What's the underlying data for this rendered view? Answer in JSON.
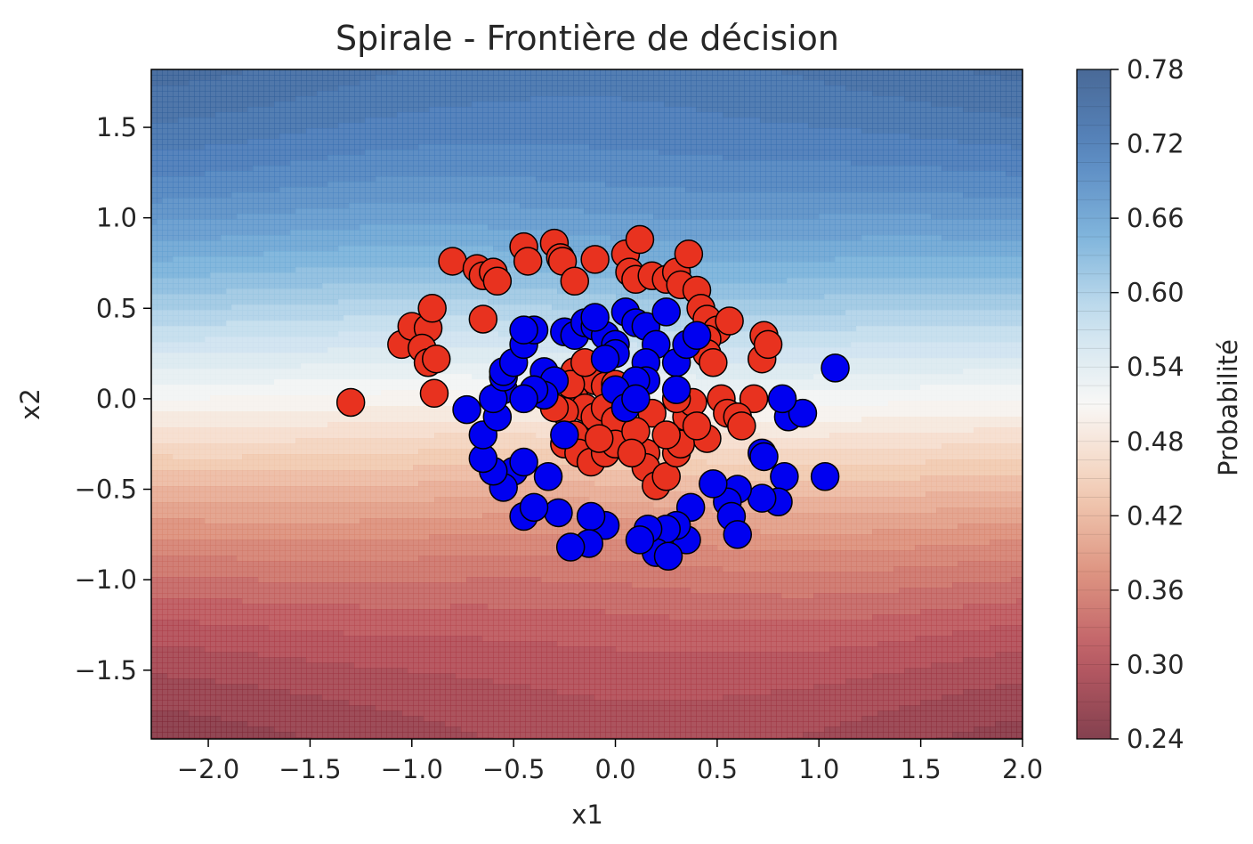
{
  "chart_data": {
    "type": "scatter",
    "title": "Spirale - Frontière de décision",
    "xlabel": "x1",
    "ylabel": "x2",
    "xlim": [
      -2.28,
      2.0
    ],
    "ylim": [
      -1.88,
      1.82
    ],
    "xticks": [
      -2.0,
      -1.5,
      -1.0,
      -0.5,
      0.0,
      0.5,
      1.0,
      1.5,
      2.0
    ],
    "yticks": [
      -1.5,
      -1.0,
      -0.5,
      0.0,
      0.5,
      1.0,
      1.5
    ],
    "xtick_labels": [
      "−2.0",
      "−1.5",
      "−1.0",
      "−0.5",
      "0.0",
      "0.5",
      "1.0",
      "1.5",
      "2.0"
    ],
    "ytick_labels": [
      "−1.5",
      "−1.0",
      "−0.5",
      "0.0",
      "0.5",
      "1.0",
      "1.5"
    ],
    "grid": false,
    "background": {
      "type": "contourf",
      "description_colormap": "RdBu",
      "colors_low_to_high": [
        "#6e1f30",
        "#b2404a",
        "#d8826c",
        "#f1c7ab",
        "#f7f6f4",
        "#c0dcec",
        "#6aa8d6",
        "#3b72b5",
        "#294f85"
      ],
      "alpha": 0.8,
      "prob_range": [
        0.24,
        0.78
      ]
    },
    "colorbar": {
      "label": "Probabilité",
      "range": [
        0.24,
        0.78
      ],
      "ticks": [
        0.24,
        0.3,
        0.36,
        0.42,
        0.48,
        0.54,
        0.6,
        0.66,
        0.72,
        0.78
      ],
      "tick_labels": [
        "0.24",
        "0.30",
        "0.36",
        "0.42",
        "0.48",
        "0.54",
        "0.60",
        "0.66",
        "0.72",
        "0.78"
      ]
    },
    "series": [
      {
        "color": "#e8321f",
        "points": [
          [
            -1.3,
            -0.02
          ],
          [
            -1.05,
            0.3
          ],
          [
            -1.0,
            0.4
          ],
          [
            -0.92,
            0.39
          ],
          [
            -0.9,
            0.5
          ],
          [
            -0.95,
            0.28
          ],
          [
            -0.92,
            0.2
          ],
          [
            -0.88,
            0.22
          ],
          [
            -0.89,
            0.03
          ],
          [
            -0.8,
            0.76
          ],
          [
            -0.68,
            0.72
          ],
          [
            -0.65,
            0.68
          ],
          [
            -0.6,
            0.7
          ],
          [
            -0.58,
            0.65
          ],
          [
            -0.45,
            0.84
          ],
          [
            -0.43,
            0.76
          ],
          [
            -0.3,
            0.86
          ],
          [
            -0.27,
            0.78
          ],
          [
            -0.26,
            0.76
          ],
          [
            -0.2,
            0.65
          ],
          [
            -0.1,
            0.77
          ],
          [
            0.05,
            0.8
          ],
          [
            0.07,
            0.7
          ],
          [
            0.1,
            0.66
          ],
          [
            0.12,
            0.88
          ],
          [
            0.18,
            0.68
          ],
          [
            0.25,
            0.66
          ],
          [
            0.3,
            0.7
          ],
          [
            0.32,
            0.63
          ],
          [
            0.36,
            0.8
          ],
          [
            0.4,
            0.6
          ],
          [
            0.42,
            0.5
          ],
          [
            0.45,
            0.44
          ],
          [
            0.5,
            0.38
          ],
          [
            0.56,
            0.43
          ],
          [
            0.45,
            0.33
          ],
          [
            0.45,
            0.25
          ],
          [
            0.48,
            0.2
          ],
          [
            0.73,
            0.35
          ],
          [
            0.72,
            0.22
          ],
          [
            0.75,
            0.3
          ],
          [
            0.68,
            0.0
          ],
          [
            0.52,
            0.0
          ],
          [
            0.55,
            -0.08
          ],
          [
            0.6,
            -0.1
          ],
          [
            0.62,
            -0.15
          ],
          [
            0.45,
            -0.22
          ],
          [
            -0.65,
            0.44
          ],
          [
            -0.2,
            0.15
          ],
          [
            -0.12,
            0.14
          ],
          [
            -0.1,
            0.1
          ],
          [
            -0.05,
            0.07
          ],
          [
            0.0,
            0.08
          ],
          [
            -0.2,
            0.0
          ],
          [
            -0.15,
            -0.05
          ],
          [
            -0.25,
            -0.07
          ],
          [
            -0.1,
            -0.1
          ],
          [
            -0.05,
            -0.05
          ],
          [
            0.0,
            -0.12
          ],
          [
            -0.2,
            -0.2
          ],
          [
            -0.25,
            -0.25
          ],
          [
            -0.18,
            -0.3
          ],
          [
            -0.12,
            -0.35
          ],
          [
            -0.05,
            -0.3
          ],
          [
            0.0,
            -0.25
          ],
          [
            0.15,
            -0.3
          ],
          [
            0.15,
            -0.38
          ],
          [
            0.2,
            -0.48
          ],
          [
            0.25,
            -0.43
          ],
          [
            0.3,
            -0.3
          ],
          [
            0.32,
            -0.25
          ],
          [
            0.35,
            -0.1
          ],
          [
            0.38,
            -0.02
          ],
          [
            0.18,
            -0.08
          ],
          [
            0.25,
            -0.2
          ],
          [
            -0.22,
            0.08
          ],
          [
            0.1,
            -0.18
          ],
          [
            -0.3,
            -0.05
          ],
          [
            0.05,
            -0.05
          ],
          [
            -0.15,
            0.2
          ],
          [
            0.3,
            0.0
          ],
          [
            0.4,
            -0.15
          ],
          [
            -0.08,
            -0.22
          ],
          [
            0.08,
            -0.3
          ]
        ]
      },
      {
        "color": "#0000f0",
        "points": [
          [
            1.08,
            0.17
          ],
          [
            0.85,
            -0.1
          ],
          [
            0.92,
            -0.08
          ],
          [
            0.82,
            0.0
          ],
          [
            0.72,
            -0.3
          ],
          [
            0.73,
            -0.32
          ],
          [
            0.83,
            -0.43
          ],
          [
            1.03,
            -0.43
          ],
          [
            0.8,
            -0.57
          ],
          [
            0.72,
            -0.55
          ],
          [
            0.6,
            -0.5
          ],
          [
            0.55,
            -0.57
          ],
          [
            0.57,
            -0.65
          ],
          [
            0.6,
            -0.75
          ],
          [
            0.48,
            -0.47
          ],
          [
            0.37,
            -0.6
          ],
          [
            0.35,
            -0.78
          ],
          [
            0.3,
            -0.7
          ],
          [
            0.25,
            -0.72
          ],
          [
            0.2,
            -0.85
          ],
          [
            0.16,
            -0.72
          ],
          [
            0.12,
            -0.78
          ],
          [
            0.26,
            -0.87
          ],
          [
            -0.05,
            -0.7
          ],
          [
            -0.12,
            -0.65
          ],
          [
            -0.13,
            -0.8
          ],
          [
            -0.22,
            -0.82
          ],
          [
            -0.28,
            -0.63
          ],
          [
            -0.45,
            -0.65
          ],
          [
            -0.4,
            -0.6
          ],
          [
            -0.33,
            -0.43
          ],
          [
            -0.5,
            -0.4
          ],
          [
            -0.55,
            -0.49
          ],
          [
            -0.6,
            -0.4
          ],
          [
            -0.65,
            -0.33
          ],
          [
            -0.45,
            -0.35
          ],
          [
            -0.65,
            -0.2
          ],
          [
            -0.73,
            -0.06
          ],
          [
            -0.58,
            -0.1
          ],
          [
            -0.55,
            0.05
          ],
          [
            -0.6,
            0.0
          ],
          [
            -0.55,
            0.12
          ],
          [
            -0.55,
            0.15
          ],
          [
            -0.5,
            0.2
          ],
          [
            -0.45,
            0.3
          ],
          [
            -0.4,
            0.38
          ],
          [
            -0.45,
            0.38
          ],
          [
            -0.25,
            0.37
          ],
          [
            -0.2,
            0.35
          ],
          [
            -0.15,
            0.42
          ],
          [
            -0.1,
            0.4
          ],
          [
            -0.05,
            0.35
          ],
          [
            0.0,
            0.3
          ],
          [
            0.05,
            0.48
          ],
          [
            0.1,
            0.42
          ],
          [
            0.15,
            0.4
          ],
          [
            0.2,
            0.3
          ],
          [
            0.25,
            0.48
          ],
          [
            0.15,
            0.2
          ],
          [
            0.15,
            0.1
          ],
          [
            0.1,
            0.1
          ],
          [
            0.0,
            0.25
          ],
          [
            -0.05,
            0.22
          ],
          [
            0.3,
            0.2
          ],
          [
            0.35,
            0.3
          ],
          [
            0.4,
            0.35
          ],
          [
            -0.35,
            0.15
          ],
          [
            -0.3,
            0.1
          ],
          [
            -0.35,
            0.02
          ],
          [
            -0.4,
            0.05
          ],
          [
            0.0,
            0.05
          ],
          [
            0.05,
            -0.05
          ],
          [
            -0.25,
            -0.2
          ],
          [
            -0.45,
            0.0
          ],
          [
            0.1,
            0.0
          ],
          [
            -0.1,
            0.45
          ],
          [
            0.3,
            0.05
          ]
        ]
      }
    ]
  }
}
